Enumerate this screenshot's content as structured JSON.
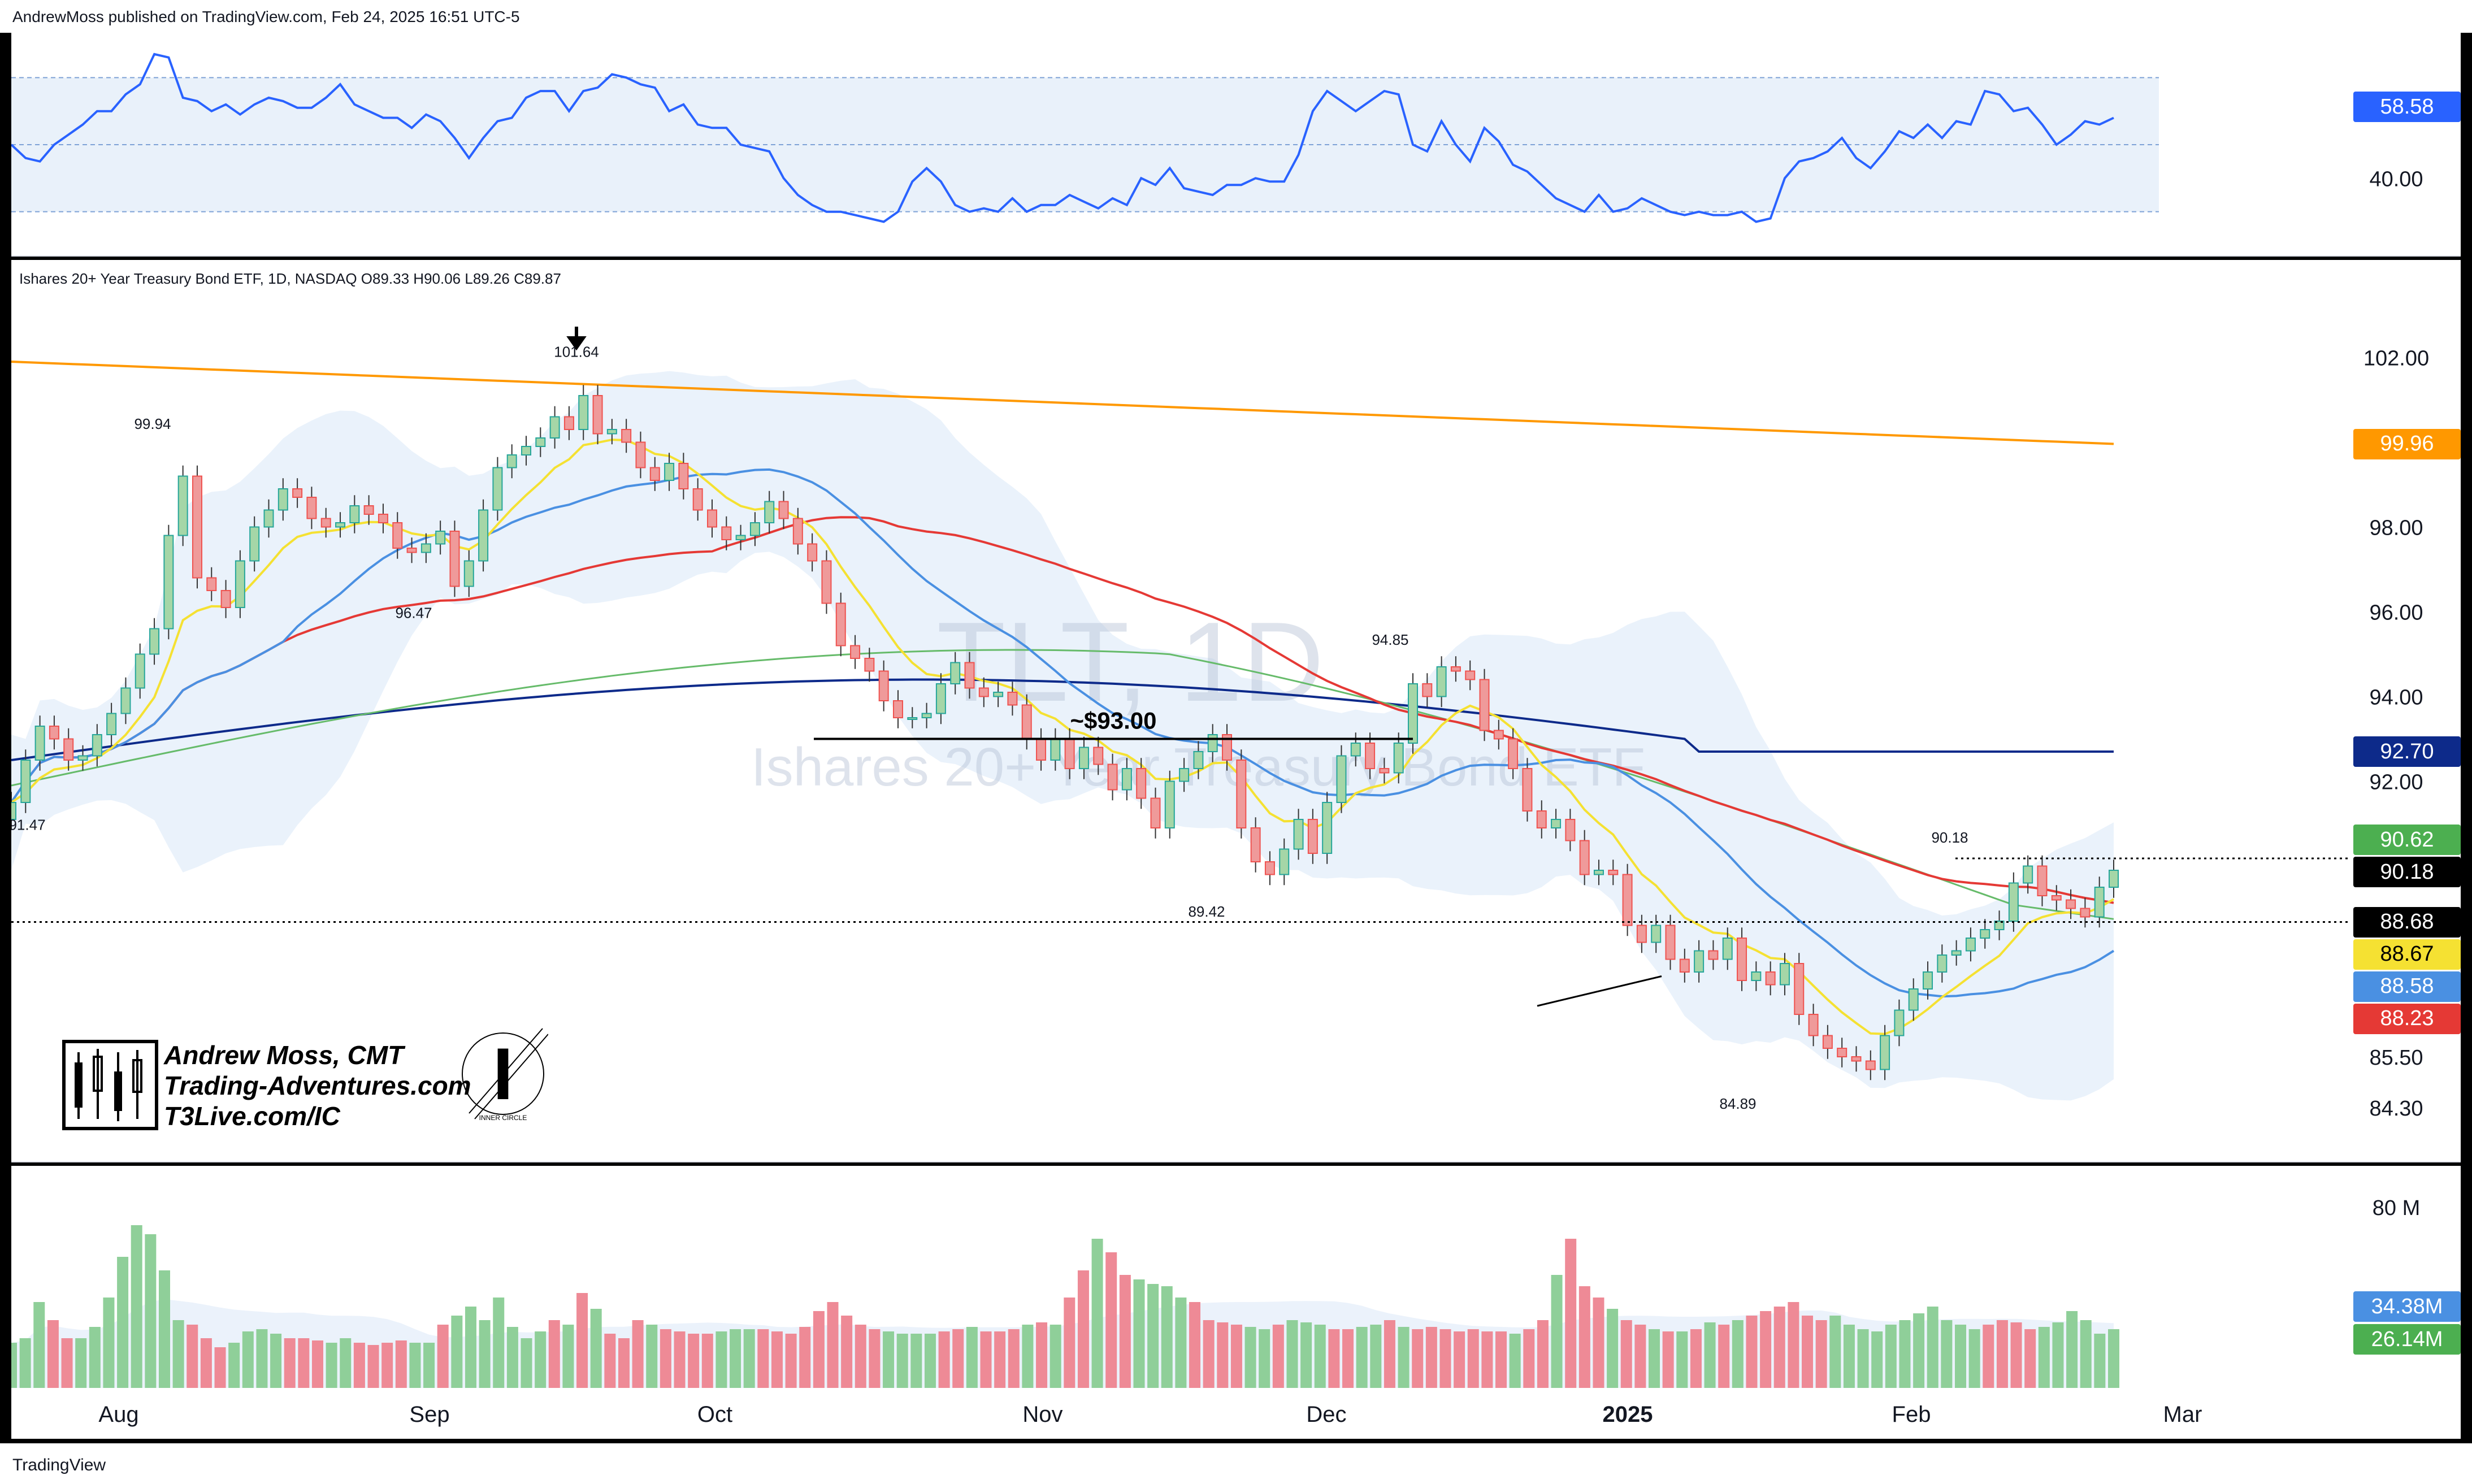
{
  "header": {
    "published_by": "AndrewMoss published on TradingView.com, Feb 24, 2025 16:51 UTC-5"
  },
  "legend": {
    "symbol_line": "Ishares 20+ Year Treasury Bond ETF, 1D, NASDAQ  O89.33  H90.06  L89.26  C89.87"
  },
  "watermark": {
    "ticker": "TLT, 1D",
    "name": "Ishares 20+ Year Treasury Bond ETF"
  },
  "branding": {
    "name": "Andrew Moss, CMT",
    "site": "Trading-Adventures.com",
    "link": "T3Live.com/IC",
    "badge_text": "INNER CIRCLE",
    "badge_letter": "I"
  },
  "footer": {
    "brand": "TradingView"
  },
  "colors": {
    "up": "#a5d6a7",
    "down": "#ef9a9a",
    "up_border": "#26a69a",
    "down_border": "#ef5350",
    "ema_yellow": "#f5e132",
    "sma20_blue": "#4a90e2",
    "sma50_red": "#e53935",
    "sma100_green": "#66bb6a",
    "sma200_navy": "#0d2a8a",
    "ma_orange": "#ff9800",
    "rsi_line": "#2962ff",
    "bb_fill": "#e3edf9"
  },
  "chart_data": [
    {
      "type": "line",
      "title": "RSI",
      "ylim": [
        20,
        80
      ],
      "reference_lines": [
        30,
        50,
        70
      ],
      "y_ticks": [
        "40.00"
      ],
      "last_value_tag": "58.58",
      "values": [
        50,
        46,
        45,
        50,
        53,
        56,
        60,
        60,
        65,
        68,
        77,
        76,
        64,
        63,
        60,
        62,
        59,
        62,
        64,
        63,
        61,
        61,
        64,
        68,
        62,
        60,
        58,
        58,
        55,
        59,
        57,
        52,
        46,
        52,
        57,
        58,
        64,
        66,
        66,
        60,
        66,
        67,
        71,
        70,
        68,
        67,
        60,
        62,
        56,
        55,
        55,
        50,
        49,
        48,
        40,
        35,
        32,
        30,
        30,
        29,
        28,
        27,
        30,
        39,
        43,
        39,
        32,
        30,
        31,
        30,
        34,
        30,
        32,
        32,
        35,
        33,
        31,
        34,
        32,
        40,
        38,
        43,
        37,
        36,
        35,
        38,
        38,
        40,
        39,
        39,
        47,
        60,
        66,
        63,
        60,
        63,
        66,
        65,
        50,
        48,
        57,
        50,
        45,
        55,
        51,
        44,
        42,
        38,
        34,
        32,
        30,
        35,
        30,
        31,
        34,
        32,
        30,
        29,
        30,
        29,
        29,
        30,
        27,
        28,
        40,
        45,
        46,
        48,
        52,
        46,
        43,
        48,
        54,
        52,
        56,
        52,
        57,
        56,
        66,
        65,
        60,
        61,
        56,
        50,
        53,
        57,
        56,
        58
      ],
      "n": 148
    },
    {
      "type": "candlestick",
      "title": "Ishares 20+ Year Treasury Bond ETF, 1D, NASDAQ",
      "ylim": [
        83.5,
        103.5
      ],
      "y_ticks": [
        "102.00",
        "98.00",
        "96.00",
        "94.00",
        "92.00",
        "85.50",
        "84.30"
      ],
      "x_ticks": [
        "Aug",
        "Sep",
        "Oct",
        "Nov",
        "Dec",
        "2025",
        "Feb",
        "Mar"
      ],
      "annotations": [
        {
          "text": "~$93.00",
          "price": 93.0
        },
        {
          "text": "101.64",
          "price": 101.64
        },
        {
          "text": "99.94",
          "price": 99.94
        },
        {
          "text": "96.47",
          "price": 96.47
        },
        {
          "text": "91.47",
          "price": 91.47
        },
        {
          "text": "94.85",
          "price": 94.85
        },
        {
          "text": "89.42",
          "price": 89.42
        },
        {
          "text": "84.89",
          "price": 84.89
        },
        {
          "text": "90.18",
          "price": 90.18
        }
      ],
      "price_tags": [
        {
          "label": "99.96",
          "price": 99.96,
          "color": "#ff9800"
        },
        {
          "label": "92.70",
          "price": 92.7,
          "color": "#0d2a8a"
        },
        {
          "label": "90.62",
          "price": 90.62,
          "color": "#4caf50"
        },
        {
          "label": "90.18",
          "price": 90.18,
          "color": "#000000"
        },
        {
          "label": "88.68",
          "price": 88.68,
          "color": "#000000"
        },
        {
          "label": "88.67",
          "price": 88.67,
          "color": "#f5e132"
        },
        {
          "label": "88.58",
          "price": 88.58,
          "color": "#4a90e2"
        },
        {
          "label": "88.23",
          "price": 88.23,
          "color": "#e53935"
        }
      ],
      "dotted_levels": [
        90.18,
        88.68
      ],
      "close": [
        91.5,
        92.5,
        93.3,
        93.0,
        92.5,
        92.6,
        93.1,
        93.6,
        94.2,
        95.0,
        95.6,
        97.8,
        99.2,
        96.8,
        96.5,
        96.1,
        97.2,
        98.0,
        98.4,
        98.9,
        98.7,
        98.2,
        98.0,
        98.1,
        98.5,
        98.3,
        98.1,
        97.5,
        97.4,
        97.6,
        97.9,
        96.6,
        97.2,
        98.4,
        99.4,
        99.7,
        99.9,
        100.1,
        100.6,
        100.3,
        101.1,
        100.2,
        100.3,
        100.0,
        99.4,
        99.1,
        99.5,
        98.9,
        98.4,
        98.0,
        97.7,
        97.8,
        98.1,
        98.6,
        98.2,
        97.6,
        97.2,
        96.2,
        95.2,
        94.9,
        94.6,
        93.9,
        93.5,
        93.5,
        93.6,
        94.3,
        94.8,
        94.2,
        94.0,
        94.1,
        93.8,
        93.0,
        92.5,
        93.0,
        92.3,
        92.8,
        92.4,
        91.8,
        92.3,
        91.6,
        90.9,
        92.0,
        92.3,
        92.7,
        93.1,
        92.5,
        90.9,
        90.1,
        89.8,
        90.4,
        91.1,
        90.3,
        91.5,
        92.6,
        92.9,
        92.3,
        92.2,
        92.9,
        94.3,
        94.0,
        94.7,
        94.6,
        94.4,
        93.2,
        93.0,
        92.3,
        91.3,
        90.9,
        91.1,
        90.6,
        89.8,
        89.9,
        89.8,
        88.6,
        88.2,
        88.6,
        87.8,
        87.5,
        88.0,
        87.8,
        88.3,
        87.3,
        87.5,
        87.2,
        87.7,
        86.5,
        86.0,
        85.7,
        85.5,
        85.4,
        85.2,
        86.0,
        86.6,
        87.1,
        87.5,
        87.9,
        88.0,
        88.3,
        88.5,
        88.7,
        89.6,
        90.0,
        89.3,
        89.2,
        89.0,
        88.8,
        89.5,
        89.9
      ]
    },
    {
      "type": "bar",
      "title": "Volume",
      "y_ticks": [
        "80 M"
      ],
      "value_tags": [
        {
          "label": "34.38M",
          "color": "#4a90e2"
        },
        {
          "label": "26.14M",
          "color": "#4caf50"
        }
      ],
      "values_m": [
        20,
        22,
        38,
        30,
        22,
        22,
        27,
        40,
        58,
        72,
        68,
        52,
        30,
        28,
        22,
        18,
        20,
        25,
        26,
        24,
        22,
        22,
        21,
        20,
        22,
        20,
        19,
        20,
        21,
        20,
        20,
        28,
        32,
        36,
        30,
        40,
        27,
        22,
        25,
        30,
        28,
        42,
        35,
        24,
        22,
        30,
        28,
        26,
        25,
        24,
        24,
        25,
        26,
        26,
        26,
        25,
        24,
        27,
        34,
        38,
        32,
        28,
        26,
        25,
        24,
        24,
        24,
        25,
        26,
        27,
        25,
        25,
        26,
        28,
        29,
        28,
        40,
        52,
        66,
        60,
        50,
        48,
        46,
        45,
        40,
        38,
        30,
        29,
        28,
        27,
        26,
        28,
        30,
        29,
        28,
        26,
        26,
        27,
        28,
        30,
        27,
        26,
        27,
        26,
        25,
        26,
        25,
        25,
        24,
        26,
        30,
        50,
        66,
        45,
        40,
        35,
        30,
        28,
        26,
        25,
        25,
        26,
        29,
        28,
        30,
        32,
        34,
        36,
        38,
        32,
        30,
        32,
        28,
        26,
        25,
        28,
        30,
        33,
        36,
        30,
        28,
        26,
        28,
        30,
        29,
        26,
        27,
        29,
        34,
        30,
        24,
        26
      ]
    }
  ]
}
